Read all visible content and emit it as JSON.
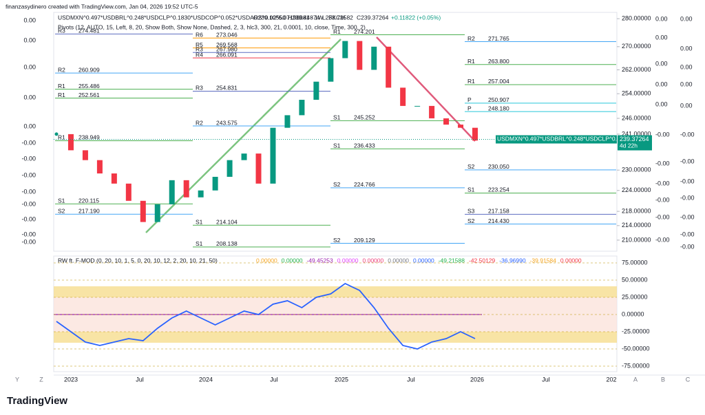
{
  "header": {
    "credit": "finanzasydinero created with TradingView.com, Jan 04, 2026 19:52 UTC-5"
  },
  "legend": {
    "symbol": "USDMXN^0.497*USDBRL^0.248*USDCLP^0.1830*USDCOP^0.052*USDARS^0.02*6.07196981 · 1W · FXCM",
    "open": "O239.10550",
    "high": "H239.44874",
    "low": "L238.72582",
    "close": "C239.37264",
    "change": "+0.11822 (+0.05%)",
    "pivots": "Pivots (12, AUTO, 15, Left, 8, 20, Show Both, Show None, Dashed, 2, 3, hlc3, 300, 21, 0.0001, 10, close, Time, 300, 2)"
  },
  "price_axis": {
    "scale": "log",
    "lim": [
      207,
      282.3
    ],
    "ticks": [
      {
        "value": 280,
        "label": "280.00000"
      },
      {
        "value": 270,
        "label": "270.00000"
      },
      {
        "value": 262,
        "label": "262.00000"
      },
      {
        "value": 254,
        "label": "254.00000"
      },
      {
        "value": 246,
        "label": "246.00000"
      },
      {
        "value": 241,
        "label": "241.00000"
      },
      {
        "value": 230,
        "label": "230.00000"
      },
      {
        "value": 224,
        "label": "224.00000"
      },
      {
        "value": 218,
        "label": "218.00000"
      },
      {
        "value": 214,
        "label": "214.00000"
      },
      {
        "value": 210,
        "label": "210.00000"
      }
    ]
  },
  "current_price": {
    "value": 239.37264,
    "label": "239.37264",
    "countdown": "4d 22h",
    "name": "USDMXN^0.497*USDBRL^0.248*USDCLP^0.18..."
  },
  "closes": [
    241,
    236,
    233,
    229,
    226,
    221,
    215,
    220,
    227,
    222,
    224,
    228,
    233,
    235,
    226,
    243,
    247,
    252,
    258,
    266,
    272,
    262,
    270,
    256,
    250,
    250,
    246,
    244,
    243,
    239
  ],
  "pivot_periods": [
    [
      {
        "tag": "R3",
        "value": 274.481,
        "label": "274.481"
      },
      {
        "tag": "R2",
        "value": 260.909,
        "label": "260.909"
      },
      {
        "tag": "R1",
        "value": 255.486,
        "label": "255.486"
      },
      {
        "tag": "R1",
        "value": 252.561,
        "label": "252.561"
      },
      {
        "tag": "R1",
        "value": 238.949,
        "label": "238.949"
      },
      {
        "tag": "S1",
        "value": 220.115,
        "label": "220.115"
      },
      {
        "tag": "S2",
        "value": 217.19,
        "label": "217.190"
      }
    ],
    [
      {
        "tag": "R6",
        "value": 273.046,
        "label": "273.046"
      },
      {
        "tag": "R5",
        "value": 269.568,
        "label": "269.568"
      },
      {
        "tag": "R3",
        "value": 267.98,
        "label": "267.980"
      },
      {
        "tag": "R4",
        "value": 266.091,
        "label": "266.091"
      },
      {
        "tag": "R3",
        "value": 254.831,
        "label": "254.831"
      },
      {
        "tag": "R2",
        "value": 243.575,
        "label": "243.575"
      },
      {
        "tag": "S1",
        "value": 214.104,
        "label": "214.104"
      },
      {
        "tag": "S1",
        "value": 208.138,
        "label": "208.138"
      }
    ],
    [
      {
        "tag": "R1",
        "value": 274.201,
        "label": "274.201"
      },
      {
        "tag": "S1",
        "value": 245.252,
        "label": "245.252"
      },
      {
        "tag": "S1",
        "value": 236.433,
        "label": "236.433"
      },
      {
        "tag": "S2",
        "value": 224.766,
        "label": "224.766"
      },
      {
        "tag": "S2",
        "value": 209.129,
        "label": "209.129"
      }
    ],
    [
      {
        "tag": "R2",
        "value": 271.765,
        "label": "271.765"
      },
      {
        "tag": "R1",
        "value": 263.8,
        "label": "263.800"
      },
      {
        "tag": "R1",
        "value": 257.004,
        "label": "257.004"
      },
      {
        "tag": "P",
        "value": 250.907,
        "label": "250.907"
      },
      {
        "tag": "P",
        "value": 248.18,
        "label": "248.180"
      },
      {
        "tag": "S2",
        "value": 230.05,
        "label": "230.050"
      },
      {
        "tag": "S1",
        "value": 223.254,
        "label": "223.254"
      },
      {
        "tag": "S3",
        "value": 217.158,
        "label": "217.158"
      },
      {
        "tag": "S2",
        "value": 214.43,
        "label": "214.430"
      }
    ]
  ],
  "left_scale": [
    "0.00",
    "0.00",
    "0.00",
    "0.00",
    "0.00",
    "-0.00",
    "-0.00",
    "-0.00",
    "-0.00",
    "-0.00",
    "-0.00",
    "-0.00",
    "-0.00"
  ],
  "right_scale_a": [
    "0.00",
    "0.00",
    "0.00",
    "0.00",
    "0.00",
    "-0.00",
    "-0.00",
    "-0.00",
    "-0.00",
    "-0.00",
    "-0.00"
  ],
  "right_scale_b": [
    "0.00",
    "0.00",
    "0.00",
    "0.00",
    "0.00",
    "-0.00",
    "-0.00",
    "-0.00",
    "-0.00",
    "-0.00",
    "-0.00",
    "-0.00"
  ],
  "indicator": {
    "title": "RW ft. F-MOD (0, 20, 10, 1, 5, 0, 20, 10, 12, 2, 20, 10, 21, 50)",
    "readouts": [
      {
        "text": "0.00000",
        "color": "#f5a623"
      },
      {
        "text": "0.00000",
        "color": "#22b14c"
      },
      {
        "text": "-49.45253",
        "color": "#9c27b0"
      },
      {
        "text": "0.00000",
        "color": "#e040fb"
      },
      {
        "text": "0.00000",
        "color": "#ec407a"
      },
      {
        "text": "0.00000",
        "color": "#787b86"
      },
      {
        "text": "0.00000",
        "color": "#2962ff"
      },
      {
        "text": "-49.21588",
        "color": "#22b14c"
      },
      {
        "text": "-42.50129",
        "color": "#f23645"
      },
      {
        "text": "-36.96990",
        "color": "#2962ff"
      },
      {
        "text": "-39.91584",
        "color": "#f5a623"
      },
      {
        "text": "0.00000",
        "color": "#f23645"
      }
    ],
    "lim": [
      -83,
      85
    ],
    "ticks": [
      {
        "value": 75,
        "label": "75.00000"
      },
      {
        "value": 50,
        "label": "50.00000"
      },
      {
        "value": 25,
        "label": "25.00000"
      },
      {
        "value": 0,
        "label": "0.00000"
      },
      {
        "value": -25,
        "label": "-25.00000"
      },
      {
        "value": -50,
        "label": "-50.00000"
      },
      {
        "value": -75,
        "label": "-75.00000"
      }
    ],
    "line": [
      -10,
      -25,
      -40,
      -45,
      -40,
      -35,
      -38,
      -20,
      -5,
      5,
      -5,
      -15,
      -5,
      5,
      0,
      15,
      20,
      10,
      25,
      30,
      45,
      35,
      10,
      -20,
      -45,
      -50,
      -40,
      -35,
      -25,
      -35
    ],
    "line_color": "#2962ff"
  },
  "time_axis": [
    "2023",
    "Jul",
    "2024",
    "Jul",
    "2025",
    "Jul",
    "2026",
    "Jul",
    "202"
  ],
  "corner_labels": [
    "Y",
    "Z",
    "A",
    "B",
    "C"
  ],
  "footer": {
    "brand": "TradingView"
  }
}
